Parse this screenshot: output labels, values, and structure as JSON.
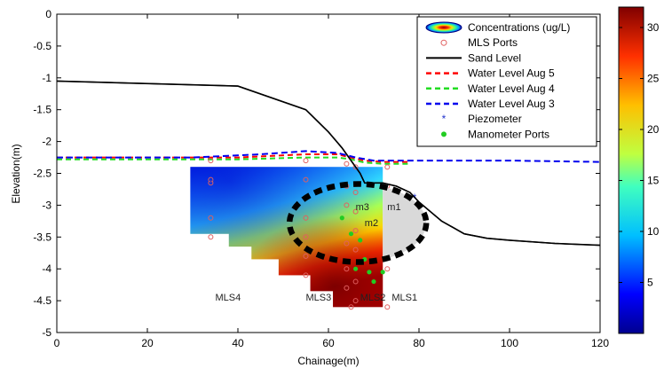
{
  "chart_data": {
    "type": "heatmap",
    "xlabel": "Chainage(m)",
    "ylabel": "Elevation(m)",
    "xlim": [
      0,
      120
    ],
    "ylim": [
      -5,
      0
    ],
    "x_ticks": [
      0,
      20,
      40,
      60,
      80,
      100,
      120
    ],
    "y_ticks": [
      0,
      -0.5,
      -1,
      -1.5,
      -2,
      -2.5,
      -3,
      -3.5,
      -4,
      -4.5,
      -5
    ],
    "y_tick_labels": [
      "0",
      "-0.5",
      "-1",
      "-1.5",
      "-2",
      "-2.5",
      "-3",
      "-3.5",
      "-4",
      "-4.5",
      "-5"
    ],
    "colorbar": {
      "min": 0,
      "max": 32,
      "ticks": [
        5,
        10,
        15,
        20,
        25,
        30
      ]
    },
    "legend": {
      "placement": "top-right",
      "entries": [
        "Concentrations (ug/L)",
        "MLS Ports",
        "Sand Level",
        "Water Level Aug 5",
        "Water Level Aug 4",
        "Water Level Aug 3",
        "Piezometer",
        "Manometer Ports"
      ]
    },
    "colors": {
      "sand": "#000000",
      "aug5": "#ff0000",
      "aug4": "#22dd22",
      "aug3": "#0000ee",
      "mls_port": "#e06060",
      "piezometer": "#2233cc",
      "manometer": "#22cc22"
    },
    "series": [
      {
        "name": "Sand Level",
        "x": [
          0,
          40,
          55,
          60,
          63,
          65,
          67,
          68,
          70,
          72,
          75,
          78,
          80,
          85,
          90,
          95,
          100,
          110,
          120
        ],
        "y": [
          -1.05,
          -1.13,
          -1.5,
          -1.85,
          -2.1,
          -2.3,
          -2.5,
          -2.65,
          -2.65,
          -2.65,
          -2.7,
          -2.8,
          -2.95,
          -3.25,
          -3.45,
          -3.52,
          -3.55,
          -3.6,
          -3.63
        ]
      },
      {
        "name": "Water Level Aug 5",
        "x": [
          0,
          40,
          55,
          62,
          65,
          68,
          72,
          78
        ],
        "y": [
          -2.25,
          -2.25,
          -2.2,
          -2.2,
          -2.25,
          -2.3,
          -2.32,
          -2.32
        ]
      },
      {
        "name": "Water Level Aug 4",
        "x": [
          0,
          40,
          55,
          62,
          65,
          68,
          72,
          78
        ],
        "y": [
          -2.28,
          -2.28,
          -2.25,
          -2.25,
          -2.28,
          -2.33,
          -2.35,
          -2.35
        ]
      },
      {
        "name": "Water Level Aug 3",
        "x": [
          0,
          30,
          45,
          55,
          62,
          66,
          70,
          75,
          80,
          100,
          120
        ],
        "y": [
          -2.25,
          -2.25,
          -2.2,
          -2.15,
          -2.18,
          -2.25,
          -2.3,
          -2.3,
          -2.3,
          -2.3,
          -2.32
        ]
      }
    ],
    "mls_ports": {
      "x": [
        34,
        34,
        34,
        34,
        34,
        55,
        55,
        55,
        55,
        55,
        55,
        64,
        64,
        64,
        64,
        64,
        64,
        65,
        66,
        66,
        66,
        66,
        66,
        66,
        66,
        73,
        73,
        73,
        73,
        73,
        73
      ],
      "y": [
        -2.3,
        -2.6,
        -3.2,
        -3.5,
        -2.65,
        -2.3,
        -2.6,
        -3.2,
        -3.5,
        -3.8,
        -4.1,
        -2.35,
        -2.7,
        -3.0,
        -3.6,
        -4.0,
        -4.3,
        -4.6,
        -2.4,
        -2.8,
        -3.1,
        -3.4,
        -3.7,
        -4.2,
        -4.5,
        -2.4,
        -2.7,
        -3.2,
        -3.6,
        -4.0,
        -4.6
      ]
    },
    "piezometer": {
      "x": [
        34,
        79
      ],
      "y": [
        -2.65,
        -2.88
      ]
    },
    "manometer_ports": {
      "x": [
        63,
        65,
        67,
        68,
        66,
        69,
        70,
        72
      ],
      "y": [
        -3.2,
        -3.45,
        -3.55,
        -3.85,
        -4.0,
        -4.05,
        -4.2,
        -4.05
      ]
    },
    "annotations": [
      {
        "text": "m1",
        "x": 73,
        "y": -3.08
      },
      {
        "text": "m2",
        "x": 68,
        "y": -3.33
      },
      {
        "text": "m3",
        "x": 66,
        "y": -3.08
      },
      {
        "text": "MLS4",
        "x": 35,
        "y": -4.5
      },
      {
        "text": "MLS3",
        "x": 55,
        "y": -4.5
      },
      {
        "text": "MLS2",
        "x": 67,
        "y": -4.5
      },
      {
        "text": "MLS1",
        "x": 74,
        "y": -4.5
      }
    ]
  }
}
